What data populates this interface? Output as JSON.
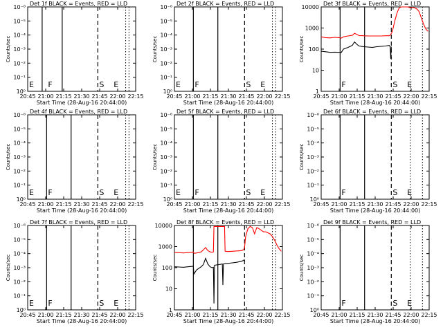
{
  "colors": {
    "events": "#000000",
    "lld": "#ff0000",
    "axes": "#000000",
    "background": "#ffffff"
  },
  "common": {
    "x_ticks": [
      "20:45",
      "21:00",
      "21:15",
      "21:30",
      "21:45",
      "22:00",
      "22:15"
    ],
    "xlabel": "Start Time (28-Aug-16 20:44:00)",
    "ylabel": "Counts/sec",
    "xlim_minutes_after_start": [
      0,
      97
    ],
    "ylim": [
      1,
      10000
    ],
    "yscale": "log"
  },
  "chart_data": [
    {
      "type": "line",
      "title": "Det 1f BLACK = Events, RED = LLD",
      "y_ticks": [
        "10⁰",
        "10⁻¹",
        "10⁻²",
        "10⁻³",
        "10⁻⁴",
        "10⁻⁵",
        "10⁻⁶"
      ],
      "solid_lines": [
        13,
        31
      ],
      "dashed_lines": [
        63
      ],
      "dotted_lines": [
        88,
        91
      ],
      "markers": [
        {
          "label": "E",
          "at": 0
        },
        {
          "label": "F",
          "at": 17
        },
        {
          "label": "S",
          "at": 63
        },
        {
          "label": "E",
          "at": 76
        }
      ],
      "series": []
    },
    {
      "type": "line",
      "title": "Det 2f BLACK = Events, RED = LLD",
      "y_ticks": [
        "10⁰",
        "10⁻¹",
        "10⁻²",
        "10⁻³",
        "10⁻⁴",
        "10⁻⁵",
        "10⁻⁶"
      ],
      "solid_lines": [
        17,
        39
      ],
      "dashed_lines": [
        63
      ],
      "dotted_lines": [
        88,
        91
      ],
      "markers": [
        {
          "label": "E",
          "at": 0
        },
        {
          "label": "F",
          "at": 17
        },
        {
          "label": "S",
          "at": 63
        },
        {
          "label": "E",
          "at": 76
        }
      ],
      "series": []
    },
    {
      "type": "line",
      "title": "Det 3f BLACK = Events, RED = LLD",
      "y_ticks": [
        "1",
        "10",
        "100",
        "1000",
        "10000"
      ],
      "solid_lines": [
        17,
        39
      ],
      "dashed_lines": [
        63
      ],
      "dotted_lines": [
        80,
        91
      ],
      "markers": [
        {
          "label": "F",
          "at": 17
        },
        {
          "label": "S",
          "at": 63
        },
        {
          "label": "E",
          "at": 76
        }
      ],
      "series": [
        {
          "color": "red",
          "x": [
            0,
            4,
            8,
            12,
            16,
            18,
            20,
            24,
            28,
            30,
            32,
            34,
            38,
            42,
            46,
            50,
            54,
            58,
            61,
            62,
            63,
            64,
            66,
            68,
            70,
            72,
            74,
            76,
            78,
            80,
            82,
            84,
            86,
            88,
            90,
            92,
            94,
            96
          ],
          "y": [
            380,
            350,
            340,
            360,
            350,
            330,
            380,
            420,
            450,
            560,
            500,
            440,
            430,
            420,
            420,
            420,
            420,
            430,
            430,
            450,
            550,
            700,
            2000,
            5000,
            9000,
            12000,
            11000,
            12000,
            10000,
            9000,
            9500,
            9000,
            8000,
            6000,
            3000,
            1500,
            900,
            700
          ]
        },
        {
          "color": "black",
          "x": [
            0,
            4,
            8,
            12,
            16,
            18,
            20,
            24,
            28,
            30,
            32,
            34,
            38,
            42,
            46,
            50,
            54,
            58,
            61,
            62,
            62.5,
            63
          ],
          "y": [
            80,
            75,
            70,
            72,
            70,
            68,
            100,
            120,
            150,
            220,
            170,
            140,
            130,
            125,
            120,
            130,
            135,
            140,
            150,
            130,
            35,
            130
          ]
        }
      ]
    },
    {
      "type": "line",
      "title": "Det 4f BLACK = Events, RED = LLD",
      "y_ticks": [
        "10⁰",
        "10⁻¹",
        "10⁻²",
        "10⁻³",
        "10⁻⁴",
        "10⁻⁵",
        "10⁻⁶"
      ],
      "solid_lines": [
        17,
        39
      ],
      "dashed_lines": [
        63
      ],
      "dotted_lines": [
        88,
        91
      ],
      "markers": [
        {
          "label": "E",
          "at": 0
        },
        {
          "label": "F",
          "at": 17
        },
        {
          "label": "S",
          "at": 63
        },
        {
          "label": "E",
          "at": 76
        }
      ],
      "series": []
    },
    {
      "type": "line",
      "title": "Det 5f BLACK = Events, RED = LLD",
      "y_ticks": [
        "10⁰",
        "10⁻¹",
        "10⁻²",
        "10⁻³",
        "10⁻⁴",
        "10⁻⁵",
        "10⁻⁶"
      ],
      "solid_lines": [
        17,
        39
      ],
      "dashed_lines": [
        63
      ],
      "dotted_lines": [
        88,
        91
      ],
      "markers": [
        {
          "label": "E",
          "at": 0
        },
        {
          "label": "F",
          "at": 17
        },
        {
          "label": "S",
          "at": 63
        },
        {
          "label": "E",
          "at": 76
        }
      ],
      "series": []
    },
    {
      "type": "line",
      "title": "Det 6f BLACK = Events, RED = LLD",
      "y_ticks": [
        "10⁰",
        "10⁻¹",
        "10⁻²",
        "10⁻³",
        "10⁻⁴",
        "10⁻⁵",
        "10⁻⁶"
      ],
      "solid_lines": [
        17,
        39
      ],
      "dashed_lines": [
        63
      ],
      "dotted_lines": [
        80,
        91
      ],
      "markers": [
        {
          "label": "F",
          "at": 17
        },
        {
          "label": "S",
          "at": 63
        },
        {
          "label": "E",
          "at": 76
        }
      ],
      "series": []
    },
    {
      "type": "line",
      "title": "Det 7f BLACK = Events, RED = LLD",
      "y_ticks": [
        "10⁰",
        "10⁻¹",
        "10⁻²",
        "10⁻³",
        "10⁻⁴",
        "10⁻⁵",
        "10⁻⁶"
      ],
      "solid_lines": [
        17,
        39
      ],
      "dashed_lines": [
        63
      ],
      "dotted_lines": [
        88,
        91
      ],
      "markers": [
        {
          "label": "E",
          "at": 0
        },
        {
          "label": "F",
          "at": 17
        },
        {
          "label": "S",
          "at": 63
        },
        {
          "label": "E",
          "at": 76
        }
      ],
      "series": []
    },
    {
      "type": "line",
      "title": "Det 8f BLACK = Events, RED = LLD",
      "y_ticks": [
        "1",
        "10",
        "100",
        "1000",
        "10000"
      ],
      "solid_lines": [
        17,
        39
      ],
      "dashed_lines": [
        63
      ],
      "dotted_lines": [
        88,
        91
      ],
      "markers": [],
      "series": [
        {
          "color": "red",
          "x": [
            0,
            4,
            8,
            12,
            16,
            17,
            17.5,
            20,
            24,
            26,
            28,
            30,
            32,
            34,
            35,
            35.5,
            36,
            42,
            44,
            45,
            45.5,
            48,
            52,
            56,
            60,
            62,
            63,
            64,
            66,
            68,
            70,
            72,
            74,
            76,
            78,
            80,
            82,
            84,
            86,
            88,
            90,
            92,
            94,
            96
          ],
          "y": [
            520,
            520,
            500,
            520,
            540,
            560,
            480,
            500,
            560,
            700,
            900,
            650,
            560,
            540,
            560,
            9000,
            9000,
            9000,
            9000,
            9000,
            600,
            580,
            600,
            620,
            640,
            700,
            900,
            3000,
            7000,
            9000,
            8000,
            4000,
            8000,
            7000,
            6000,
            5000,
            5000,
            4500,
            4000,
            3000,
            2000,
            1200,
            800,
            600
          ]
        },
        {
          "color": "black",
          "x": [
            0,
            4,
            8,
            12,
            16,
            17,
            17.5,
            20,
            24,
            26,
            28,
            30,
            32,
            34,
            35,
            35.5,
            36,
            40,
            43,
            43.5,
            44,
            48,
            52,
            56,
            60,
            62,
            63
          ],
          "y": [
            110,
            108,
            105,
            110,
            115,
            120,
            50,
            80,
            110,
            140,
            280,
            150,
            110,
            100,
            105,
            2,
            130,
            140,
            150,
            15,
            150,
            160,
            170,
            180,
            200,
            220,
            250
          ]
        }
      ]
    },
    {
      "type": "line",
      "title": "Det 9f BLACK = Events, RED = LLD",
      "y_ticks": [
        "10⁰",
        "10⁻¹",
        "10⁻²",
        "10⁻³",
        "10⁻⁴",
        "10⁻⁵",
        "10⁻⁶"
      ],
      "solid_lines": [
        17,
        39
      ],
      "dashed_lines": [
        63
      ],
      "dotted_lines": [
        80,
        91
      ],
      "markers": [
        {
          "label": "F",
          "at": 17
        },
        {
          "label": "S",
          "at": 63
        },
        {
          "label": "E",
          "at": 76
        }
      ],
      "series": []
    }
  ]
}
